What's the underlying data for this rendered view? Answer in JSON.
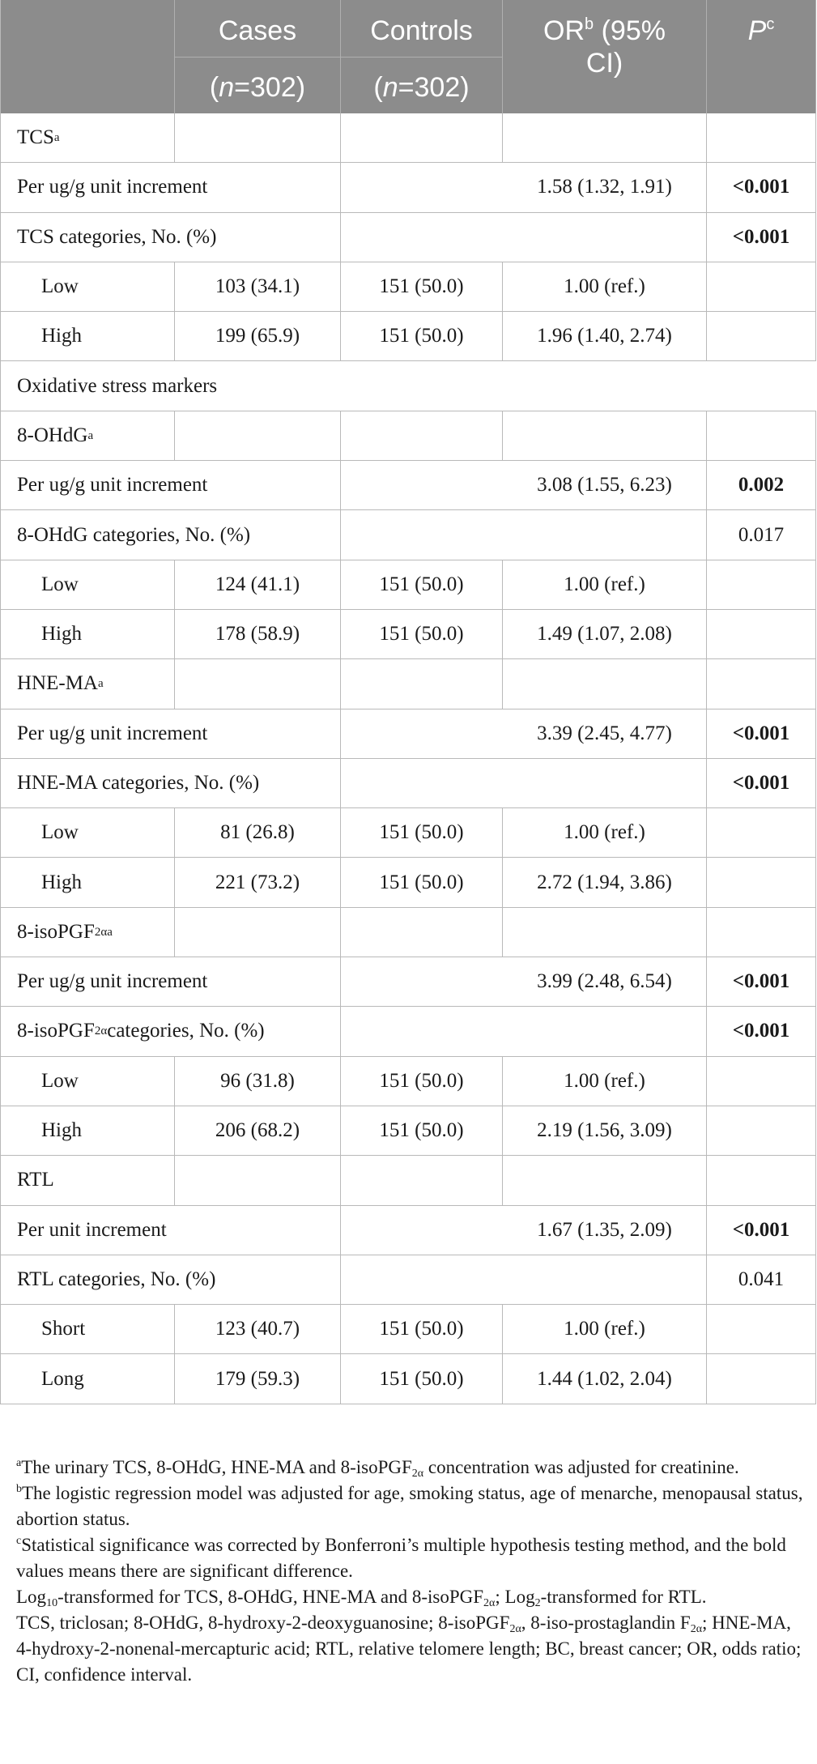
{
  "header": {
    "cases_label": "Cases",
    "cases_n": "(n=302)",
    "controls_label": "Controls",
    "controls_n": "(n=302)",
    "or_label": "OR",
    "or_sup": "b",
    "or_rest": " (95%",
    "or_line2": "CI)",
    "p_label": "P",
    "p_sup": "c"
  },
  "rows": [
    {
      "label": "TCS",
      "sup": "a",
      "cases": "",
      "controls": "",
      "or": "",
      "p": ""
    },
    {
      "label": "Per ug/g unit increment",
      "cases": "",
      "controls": "",
      "or": "1.58 (1.32, 1.91)",
      "p": "<0.001"
    },
    {
      "label": "TCS categories, No. (%)",
      "cases": "",
      "controls": "",
      "or": "",
      "p": "<0.001"
    },
    {
      "label": "Low",
      "cases": "103 (34.1)",
      "controls": "151 (50.0)",
      "or": "1.00 (ref.)",
      "p": ""
    },
    {
      "label": "High",
      "cases": "199 (65.9)",
      "controls": "151 (50.0)",
      "or": "1.96 (1.40, 2.74)",
      "p": ""
    },
    {
      "label": "Oxidative stress markers"
    },
    {
      "label": "8-OHdG",
      "sup": "a",
      "cases": "",
      "controls": "",
      "or": "",
      "p": ""
    },
    {
      "label": "Per ug/g unit increment",
      "cases": "",
      "controls": "",
      "or": "3.08 (1.55, 6.23)",
      "p": "0.002"
    },
    {
      "label": "8-OHdG categories, No. (%)",
      "cases": "",
      "controls": "",
      "or": "",
      "p": "0.017"
    },
    {
      "label": "Low",
      "cases": "124 (41.1)",
      "controls": "151 (50.0)",
      "or": "1.00 (ref.)",
      "p": ""
    },
    {
      "label": "High",
      "cases": "178 (58.9)",
      "controls": "151 (50.0)",
      "or": "1.49 (1.07, 2.08)",
      "p": ""
    },
    {
      "label": "HNE-MA",
      "sup": "a",
      "cases": "",
      "controls": "",
      "or": "",
      "p": ""
    },
    {
      "label": "Per ug/g unit increment",
      "cases": "",
      "controls": "",
      "or": "3.39 (2.45, 4.77)",
      "p": "<0.001"
    },
    {
      "label": "HNE-MA categories, No. (%)",
      "cases": "",
      "controls": "",
      "or": "",
      "p": "<0.001"
    },
    {
      "label": "Low",
      "cases": "81 (26.8)",
      "controls": "151 (50.0)",
      "or": "1.00 (ref.)",
      "p": ""
    },
    {
      "label": "High",
      "cases": "221 (73.2)",
      "controls": "151 (50.0)",
      "or": "2.72 (1.94, 3.86)",
      "p": ""
    },
    {
      "label": "8-isoPGF",
      "sub": "2α",
      "sup": "a",
      "cases": "",
      "controls": "",
      "or": "",
      "p": ""
    },
    {
      "label": "Per ug/g unit increment",
      "cases": "",
      "controls": "",
      "or": "3.99 (2.48, 6.54)",
      "p": "<0.001"
    },
    {
      "label": "8-isoPGF",
      "sub": "2α",
      "label_rest": " categories, No. (%)",
      "cases": "",
      "controls": "",
      "or": "",
      "p": "<0.001"
    },
    {
      "label": "Low",
      "cases": "96 (31.8)",
      "controls": "151 (50.0)",
      "or": "1.00 (ref.)",
      "p": ""
    },
    {
      "label": "High",
      "cases": "206 (68.2)",
      "controls": "151 (50.0)",
      "or": "2.19 (1.56, 3.09)",
      "p": ""
    },
    {
      "label": "RTL",
      "cases": "",
      "controls": "",
      "or": "",
      "p": ""
    },
    {
      "label": "Per unit increment",
      "cases": "",
      "controls": "",
      "or": "1.67 (1.35, 2.09)",
      "p": "<0.001"
    },
    {
      "label": "RTL categories, No. (%)",
      "cases": "",
      "controls": "",
      "or": "",
      "p": "0.041"
    },
    {
      "label": "Short",
      "cases": "123 (40.7)",
      "controls": "151 (50.0)",
      "or": "1.00 (ref.)",
      "p": ""
    },
    {
      "label": "Long",
      "cases": "179 (59.3)",
      "controls": "151 (50.0)",
      "or": "1.44 (1.02, 2.04)",
      "p": ""
    }
  ],
  "footnotes": {
    "a_mark": "a",
    "a_text1": "The urinary TCS, 8-OHdG, HNE-MA and 8-isoPGF",
    "a_sub": "2α",
    "a_text2": " concentration was adjusted for creatinine.",
    "b_mark": "b",
    "b_text": "The logistic regression model was adjusted for age, smoking status, age of menarche, menopausal status, abortion status.",
    "c_mark": "c",
    "c_text": "Statistical significance was corrected by Bonferroni’s multiple hypothesis testing method, and the bold values means there are significant difference.",
    "log_1": "Log",
    "log_sub10": "10",
    "log_2": "-transformed for TCS, 8-OHdG, HNE-MA and 8-isoPGF",
    "log_sub2a": "2α",
    "log_3": "; Log",
    "log_sub2": "2",
    "log_4": "-transformed for RTL.",
    "abbr_1": "TCS, triclosan;  8-OHdG, 8-hydroxy-2-deoxyguanosine; 8-isoPGF",
    "abbr_sub1": "2α",
    "abbr_2": ", 8-iso-prostaglandin F",
    "abbr_sub2": "2α",
    "abbr_3": "; HNE-MA, 4-hydroxy-2-nonenal-mercapturic acid; RTL, relative telomere length; BC, breast cancer; OR, odds ratio; CI, confidence interval."
  }
}
